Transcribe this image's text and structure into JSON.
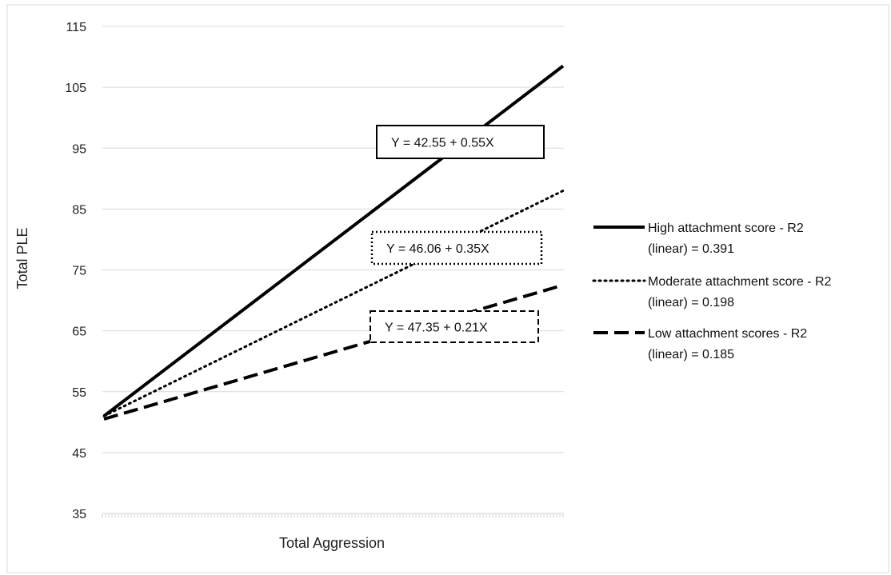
{
  "chart_data": {
    "type": "line",
    "title": "",
    "xlabel": "Total Aggression",
    "ylabel": "Total PLE",
    "ylim": [
      35,
      115
    ],
    "yticks": [
      35,
      45,
      55,
      65,
      75,
      85,
      95,
      105,
      115
    ],
    "x_tick_labels_shown": false,
    "grid": "horizontal",
    "legend_position": "right",
    "series": [
      {
        "name": "High attachment score  - R2 (linear) = 0.391",
        "legend_lines": [
          "High attachment score  - R2",
          "(linear) = 0.391"
        ],
        "line_style": "solid",
        "equation": "Y = 42.55 + 0.55X",
        "y_start": 51,
        "y_end": 108.5
      },
      {
        "name": "Moderate attachment score  - R2 (linear) = 0.198",
        "legend_lines": [
          "Moderate attachment score  - R2",
          "(linear) = 0.198"
        ],
        "line_style": "dotted",
        "equation": "Y = 46.06 + 0.35X",
        "y_start": 51,
        "y_end": 88
      },
      {
        "name": "Low attachment scores - R2 (linear) = 0.185",
        "legend_lines": [
          "Low attachment scores - R2",
          "(linear) = 0.185"
        ],
        "line_style": "dashed",
        "equation": "Y = 47.35 + 0.21X",
        "y_start": 50.5,
        "y_end": 72.5
      }
    ]
  }
}
